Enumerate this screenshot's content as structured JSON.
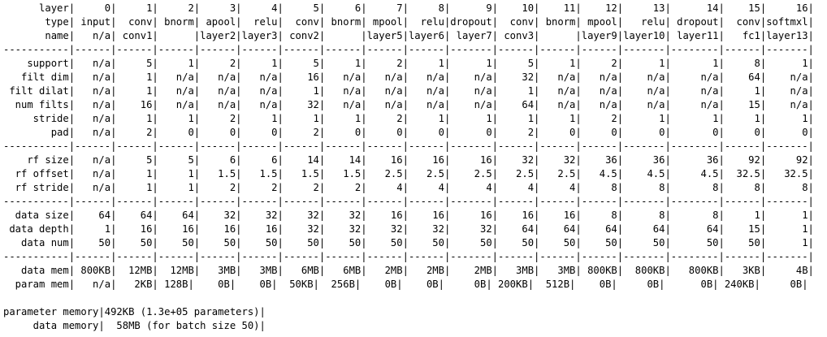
{
  "lines": [
    "      layer|     0|     1|     2|     3|     4|     5|     6|     7|     8|      9|    10|    11|    12|     13|      14|    15|     16|",
    "       type| input|  conv| bnorm| apool|  relu|  conv| bnorm| mpool|  relu|dropout|  conv| bnorm| mpool|   relu| dropout|  conv|softmxl|",
    "       name|   n/a| conv1|      |layer2|layer3| conv2|      |layer5|layer6| layer7| conv3|      |layer9|layer10| layer11|   fc1|layer13|",
    "-----------|------|------|------|------|------|------|------|------|------|-------|------|------|------|-------|--------|------|-------|",
    "    support|   n/a|     5|     1|     2|     1|     5|     1|     2|     1|      1|     5|     1|     2|      1|       1|     8|      1|",
    "   filt dim|   n/a|     1|   n/a|   n/a|   n/a|    16|   n/a|   n/a|   n/a|    n/a|    32|   n/a|   n/a|    n/a|     n/a|    64|    n/a|",
    " filt dilat|   n/a|     1|   n/a|   n/a|   n/a|     1|   n/a|   n/a|   n/a|    n/a|     1|   n/a|   n/a|    n/a|     n/a|     1|    n/a|",
    "  num filts|   n/a|    16|   n/a|   n/a|   n/a|    32|   n/a|   n/a|   n/a|    n/a|    64|   n/a|   n/a|    n/a|     n/a|    15|    n/a|",
    "     stride|   n/a|     1|     1|     2|     1|     1|     1|     2|     1|      1|     1|     1|     2|      1|       1|     1|      1|",
    "        pad|   n/a|     2|     0|     0|     0|     2|     0|     0|     0|      0|     2|     0|     0|      0|       0|     0|      0|",
    "-----------|------|------|------|------|------|------|------|------|------|-------|------|------|------|-------|--------|------|-------|",
    "    rf size|   n/a|     5|     5|     6|     6|    14|    14|    16|    16|     16|    32|    32|    36|     36|      36|    92|     92|",
    "  rf offset|   n/a|     1|     1|   1.5|   1.5|   1.5|   1.5|   2.5|   2.5|    2.5|   2.5|   2.5|   4.5|    4.5|     4.5|  32.5|   32.5|",
    "  rf stride|   n/a|     1|     1|     2|     2|     2|     2|     4|     4|      4|     4|     4|     8|      8|       8|     8|      8|",
    "-----------|------|------|------|------|------|------|------|------|------|-------|------|------|------|-------|--------|------|-------|",
    "  data size|    64|    64|    64|    32|    32|    32|    32|    16|    16|     16|    16|    16|     8|      8|       8|     1|      1|",
    " data depth|     1|    16|    16|    16|    16|    32|    32|    32|    32|     32|    64|    64|    64|     64|      64|    15|      1|",
    "   data num|    50|    50|    50|    50|    50|    50|    50|    50|    50|     50|    50|    50|    50|     50|      50|    50|      1|",
    "-----------|------|------|------|------|------|------|------|------|------|-------|------|------|------|-------|--------|------|-------|",
    "   data mem| 800KB|  12MB|  12MB|   3MB|   3MB|   6MB|   6MB|   2MB|   2MB|    2MB|   3MB|   3MB| 800KB|  800KB|   800KB|   3KB|     4B|",
    "  param mem|   n/a|   2KB| 128B|    0B|    0B|  50KB|  256B|    0B|    0B|     0B| 200KB|  512B|    0B|     0B|      0B| 240KB|     0B|",
    "",
    "parameter memory|492KB (1.3e+05 parameters)|",
    "     data memory|  58MB (for batch size 50)|"
  ]
}
